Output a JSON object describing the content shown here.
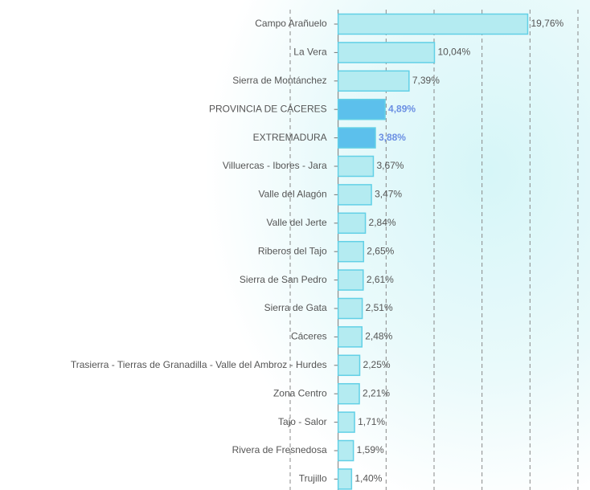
{
  "chart_data": {
    "type": "hbar",
    "categories": [
      "Campo Arañuelo",
      "La Vera",
      "Sierra de Montánchez",
      "PROVINCIA DE CÁCERES",
      "EXTREMADURA",
      "Villuercas - Ibores - Jara",
      "Valle del Alagón",
      "Valle del Jerte",
      "Riberos del Tajo",
      "Sierra de San Pedro",
      "Sierra de Gata",
      "Cáceres",
      "Trasierra - Tierras de Granadilla - Valle del Ambroz - Hurdes",
      "Zona Centro",
      "Tajo - Salor",
      "Rivera de Fresnedosa",
      "Trujillo"
    ],
    "values": [
      19.76,
      10.04,
      7.39,
      4.89,
      3.88,
      3.67,
      3.47,
      2.84,
      2.65,
      2.61,
      2.51,
      2.48,
      2.25,
      2.21,
      1.71,
      1.59,
      1.4
    ],
    "value_labels": [
      "19,76%",
      "10,04%",
      "7,39%",
      "4,89%",
      "3,88%",
      "3,67%",
      "3,47%",
      "2,84%",
      "2,65%",
      "2,61%",
      "2,51%",
      "2,48%",
      "2,25%",
      "2,21%",
      "1,71%",
      "1,59%",
      "1,40%"
    ],
    "colors": [
      "#b4ebf1",
      "#b4ebf1",
      "#b4ebf1",
      "#5cc0ec",
      "#5cc0ec",
      "#b4ebf1",
      "#b4ebf1",
      "#b4ebf1",
      "#b4ebf1",
      "#b4ebf1",
      "#b4ebf1",
      "#b4ebf1",
      "#b4ebf1",
      "#b4ebf1",
      "#b4ebf1",
      "#b4ebf1",
      "#b4ebf1"
    ],
    "label_colors": [
      "#555555",
      "#555555",
      "#555555",
      "#6b8fe3",
      "#6b8fe3",
      "#555555",
      "#555555",
      "#555555",
      "#555555",
      "#555555",
      "#555555",
      "#555555",
      "#555555",
      "#555555",
      "#555555",
      "#555555",
      "#555555"
    ],
    "xlim": [
      -5,
      25
    ],
    "xticks": [
      -5,
      0,
      5,
      10,
      15,
      20,
      25
    ],
    "grid": true
  }
}
